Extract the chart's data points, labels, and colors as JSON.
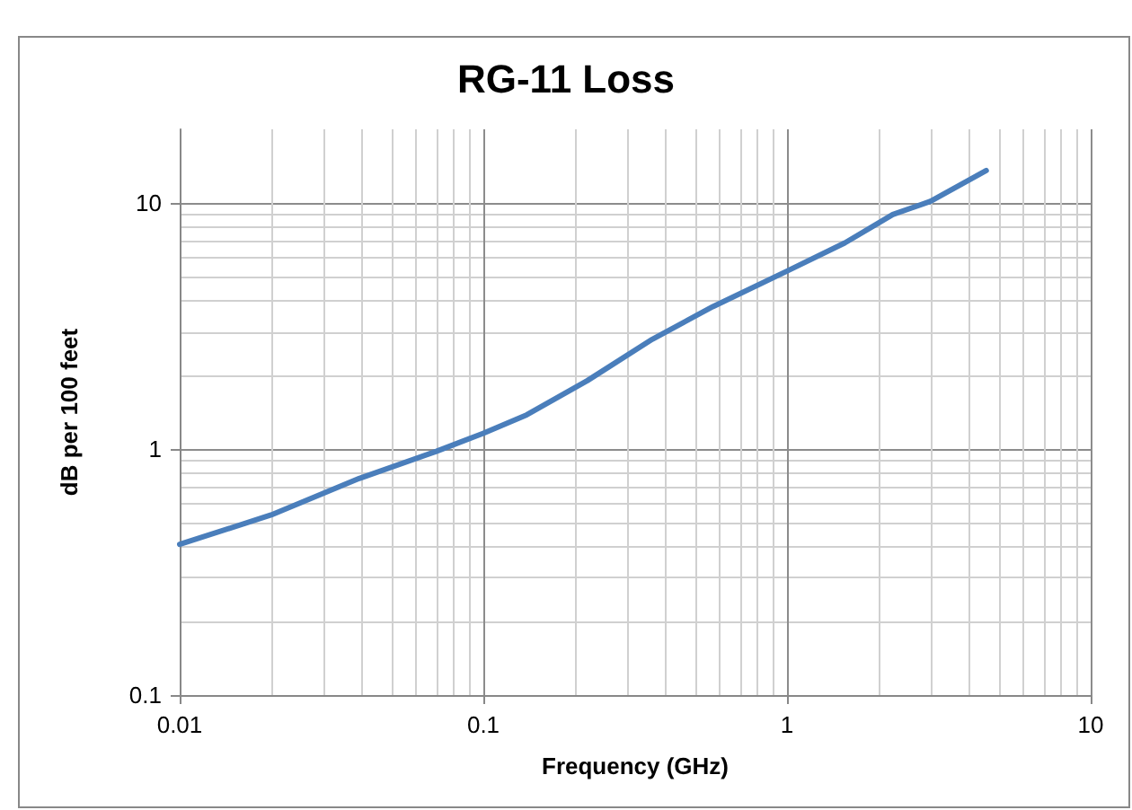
{
  "chart_data": {
    "type": "line",
    "title": "RG-11 Loss",
    "xlabel": "Frequency (GHz)",
    "ylabel": "dB per 100 feet",
    "log": "xy",
    "grid": true,
    "marker": "none",
    "line_style": "solid",
    "xlim": [
      0.01,
      10
    ],
    "xticks": [
      0.01,
      0.1,
      1,
      10
    ],
    "ylim": [
      0.1,
      20
    ],
    "yticks": [
      0.1,
      1,
      10
    ],
    "series": [
      {
        "color": "#4a7ebb",
        "x": [
          0.01,
          0.02,
          0.039,
          0.07,
          0.1,
          0.139,
          0.22,
          0.36,
          0.57,
          1,
          1.55,
          2.23,
          2.97,
          4.53
        ],
        "values": [
          0.41,
          0.54,
          0.76,
          0.98,
          1.16,
          1.38,
          1.9,
          2.8,
          3.8,
          5.3,
          6.9,
          9.0,
          10.2,
          13.6
        ]
      }
    ]
  }
}
